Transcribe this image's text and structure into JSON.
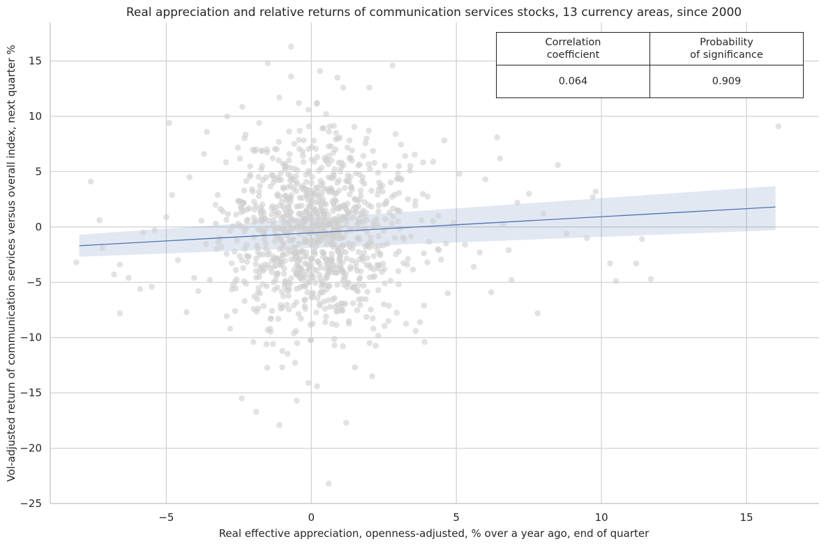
{
  "chart_data": {
    "type": "scatter",
    "title": "Real appreciation and relative returns of communication services stocks, 13 currency areas, since 2000",
    "xlabel": "Real effective appreciation, openness-adjusted, % over a year ago, end of quarter",
    "ylabel": "Vol-adjusted return of communication services versus overall index, next quarter %",
    "xlim": [
      -9,
      17.5
    ],
    "ylim": [
      -25,
      18.5
    ],
    "xticks": [
      -5,
      0,
      5,
      10,
      15
    ],
    "xtick_labels": [
      "−5",
      "0",
      "5",
      "10",
      "15"
    ],
    "yticks": [
      15,
      10,
      5,
      0,
      -5,
      -10,
      -15,
      -20,
      -25
    ],
    "ytick_labels": [
      "15",
      "10",
      "5",
      "0",
      "−5",
      "−10",
      "−15",
      "−20",
      "−25"
    ],
    "grid": true,
    "point_color": "#cfcfcf",
    "line_color": "#4c72b0",
    "regression": {
      "x": [
        -8.0,
        16.0
      ],
      "y": [
        -1.7,
        1.8
      ],
      "ci_lower": [
        -2.7,
        -0.3
      ],
      "ci_upper": [
        -0.7,
        3.7
      ]
    },
    "points_sample": [
      [
        -8.1,
        -3.2
      ],
      [
        -7.6,
        4.1
      ],
      [
        -7.3,
        0.6
      ],
      [
        -7.2,
        -1.9
      ],
      [
        -6.8,
        -4.3
      ],
      [
        -6.6,
        -7.8
      ],
      [
        -6.6,
        -3.4
      ],
      [
        -6.3,
        -4.6
      ],
      [
        -5.9,
        -5.6
      ],
      [
        -5.8,
        -0.5
      ],
      [
        -5.5,
        -5.4
      ],
      [
        -5.4,
        -0.3
      ],
      [
        -5.0,
        0.9
      ],
      [
        -4.9,
        9.4
      ],
      [
        -4.8,
        2.9
      ],
      [
        -4.6,
        -3.0
      ],
      [
        -4.3,
        -7.7
      ],
      [
        -4.2,
        4.5
      ],
      [
        -3.9,
        -5.8
      ],
      [
        -3.7,
        6.6
      ],
      [
        -3.6,
        8.6
      ],
      [
        -3.5,
        -4.8
      ],
      [
        -3.3,
        2.0
      ],
      [
        -3.1,
        -1.8
      ],
      [
        -2.9,
        10.0
      ],
      [
        -2.8,
        -9.2
      ],
      [
        -2.6,
        -3.9
      ],
      [
        -2.5,
        2.3
      ],
      [
        -2.4,
        -15.5
      ],
      [
        -2.3,
        -6.7
      ],
      [
        -2.1,
        4.7
      ],
      [
        -2.0,
        -10.4
      ],
      [
        -1.9,
        -16.7
      ],
      [
        -1.8,
        3.2
      ],
      [
        -1.7,
        6.9
      ],
      [
        -1.6,
        -3.4
      ],
      [
        -1.5,
        14.8
      ],
      [
        -1.4,
        -8.3
      ],
      [
        -1.3,
        0.6
      ],
      [
        -1.2,
        -4.4
      ],
      [
        -1.1,
        11.7
      ],
      [
        -1.1,
        -17.9
      ],
      [
        -1.0,
        -11.2
      ],
      [
        -0.9,
        2.8
      ],
      [
        -0.8,
        -5.5
      ],
      [
        -0.7,
        16.3
      ],
      [
        -0.7,
        13.6
      ],
      [
        -0.6,
        -9.6
      ],
      [
        -0.5,
        -15.7
      ],
      [
        -0.4,
        8.7
      ],
      [
        -0.3,
        -2.2
      ],
      [
        -0.3,
        3.7
      ],
      [
        -0.2,
        -7.4
      ],
      [
        -0.1,
        10.6
      ],
      [
        -0.1,
        -14.1
      ],
      [
        0.0,
        0.8
      ],
      [
        0.0,
        -4.6
      ],
      [
        0.1,
        5.9
      ],
      [
        0.1,
        -1.3
      ],
      [
        0.2,
        -14.4
      ],
      [
        0.3,
        14.1
      ],
      [
        0.3,
        -6.0
      ],
      [
        0.4,
        2.5
      ],
      [
        0.5,
        -2.9
      ],
      [
        0.6,
        -23.2
      ],
      [
        0.6,
        7.3
      ],
      [
        0.7,
        -0.7
      ],
      [
        0.8,
        -10.7
      ],
      [
        0.9,
        13.5
      ],
      [
        0.9,
        4.0
      ],
      [
        1.0,
        -3.6
      ],
      [
        1.1,
        12.6
      ],
      [
        1.2,
        -17.7
      ],
      [
        1.2,
        1.6
      ],
      [
        1.3,
        -8.5
      ],
      [
        1.4,
        6.0
      ],
      [
        1.5,
        -12.7
      ],
      [
        1.6,
        -0.2
      ],
      [
        1.7,
        3.3
      ],
      [
        1.8,
        -5.3
      ],
      [
        1.9,
        8.0
      ],
      [
        2.0,
        12.6
      ],
      [
        2.1,
        -13.5
      ],
      [
        2.2,
        -1.8
      ],
      [
        2.3,
        4.9
      ],
      [
        2.5,
        -7.0
      ],
      [
        2.7,
        1.3
      ],
      [
        2.8,
        14.6
      ],
      [
        2.9,
        8.4
      ],
      [
        3.0,
        -4.0
      ],
      [
        3.2,
        -1.1
      ],
      [
        3.4,
        5.1
      ],
      [
        3.6,
        -9.4
      ],
      [
        3.8,
        0.6
      ],
      [
        4.0,
        -3.2
      ],
      [
        4.2,
        5.9
      ],
      [
        4.4,
        -2.1
      ],
      [
        4.7,
        -6.0
      ],
      [
        4.9,
        0.4
      ],
      [
        5.1,
        4.8
      ],
      [
        5.3,
        -1.6
      ],
      [
        5.6,
        -3.6
      ],
      [
        5.8,
        -2.3
      ],
      [
        6.0,
        4.3
      ],
      [
        6.2,
        -5.9
      ],
      [
        6.4,
        8.1
      ],
      [
        6.5,
        6.2
      ],
      [
        6.6,
        0.2
      ],
      [
        6.8,
        -2.1
      ],
      [
        6.9,
        -4.8
      ],
      [
        7.1,
        2.2
      ],
      [
        7.5,
        3.0
      ],
      [
        7.8,
        -7.8
      ],
      [
        8.0,
        1.2
      ],
      [
        8.5,
        5.6
      ],
      [
        8.8,
        -0.6
      ],
      [
        9.5,
        -1.0
      ],
      [
        9.7,
        2.7
      ],
      [
        9.8,
        3.2
      ],
      [
        10.3,
        -3.3
      ],
      [
        10.5,
        -4.9
      ],
      [
        11.2,
        -3.3
      ],
      [
        11.4,
        -1.1
      ],
      [
        11.7,
        -4.7
      ],
      [
        16.1,
        9.1
      ]
    ],
    "cloud_center": [
      0.2,
      -0.4
    ],
    "cloud_spread": [
      1.5,
      4.3
    ],
    "cloud_count": 950
  },
  "stats_table": {
    "headers": [
      "Correlation\ncoefficient",
      "Probability\nof significance"
    ],
    "values": [
      "0.064",
      "0.909"
    ]
  }
}
